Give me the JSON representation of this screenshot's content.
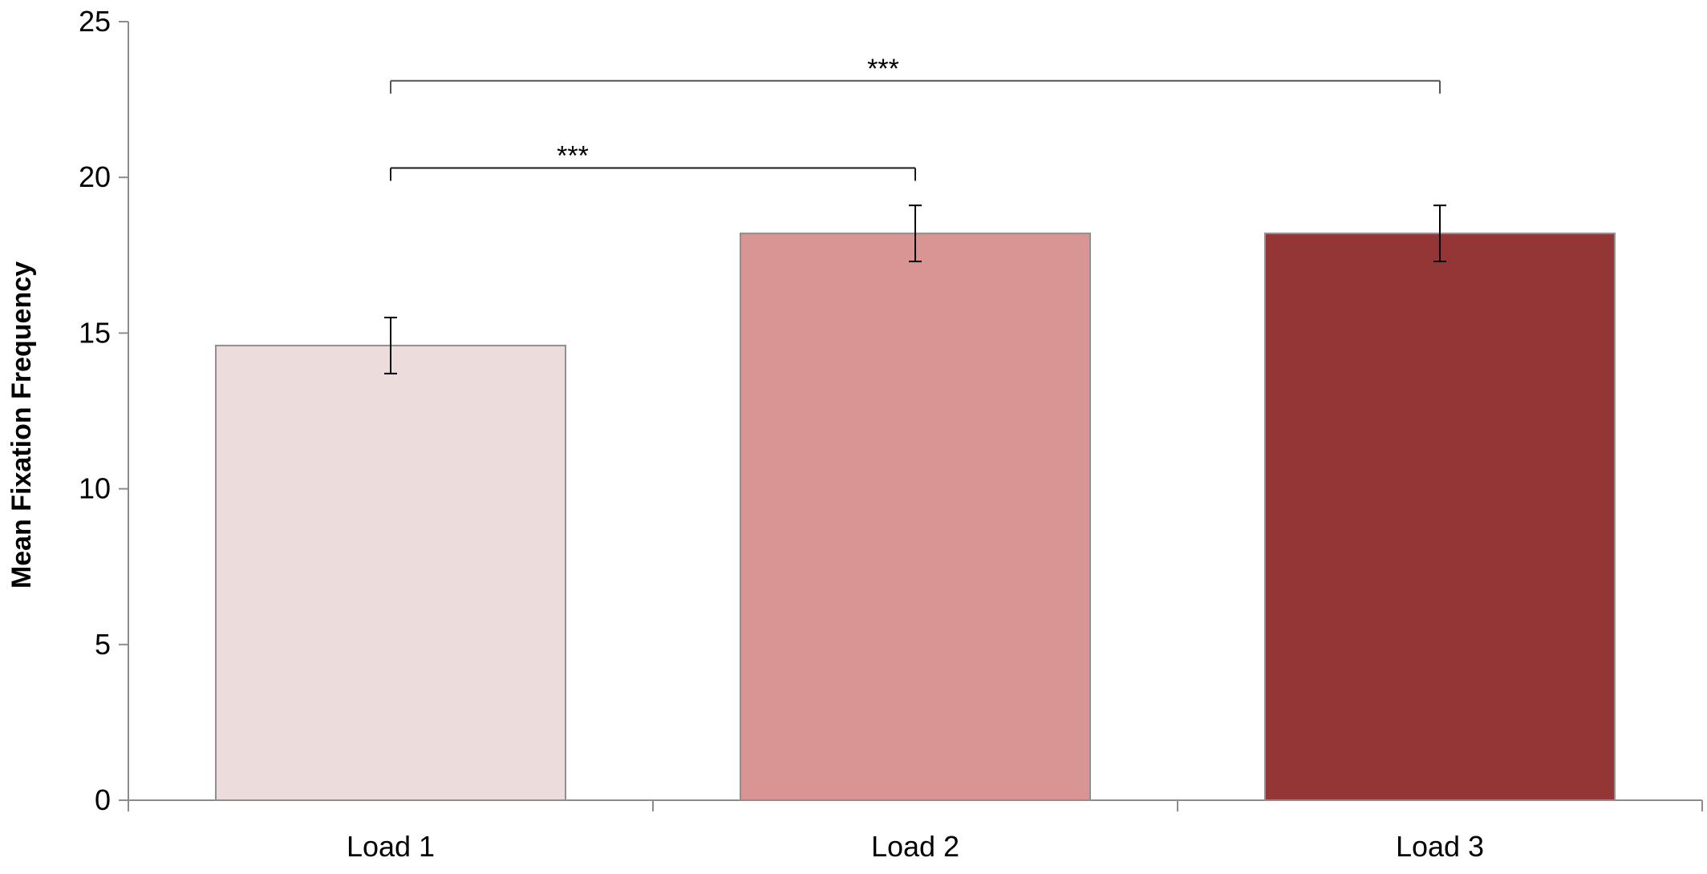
{
  "chart_data": {
    "type": "bar",
    "categories": [
      "Load 1",
      "Load 2",
      "Load 3"
    ],
    "values": [
      14.6,
      18.2,
      18.2
    ],
    "errors": [
      0.9,
      0.9,
      0.9
    ],
    "colors": [
      "#ecdcdc",
      "#d99494",
      "#953636"
    ],
    "ylabel": "Mean Fixation Frequency",
    "xlabel": "",
    "ylim": [
      0,
      25
    ],
    "yticks": [
      0,
      5,
      10,
      15,
      20,
      25
    ],
    "grid": false,
    "significance": [
      {
        "from": 0,
        "to": 1,
        "label": "***",
        "level": 20.3
      },
      {
        "from": 0,
        "to": 2,
        "label": "***",
        "level": 23.1
      }
    ]
  }
}
